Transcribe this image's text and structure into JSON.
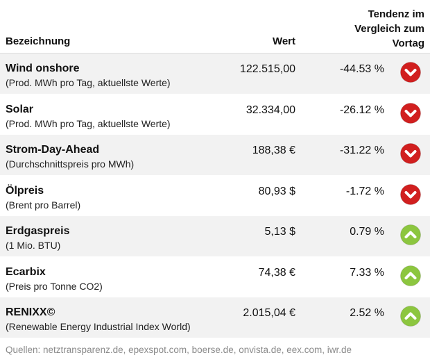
{
  "header": {
    "name_label": "Bezeichnung",
    "value_label": "Wert",
    "trend_line1": "Tendenz im",
    "trend_line2": "Vergleich zum",
    "trend_line3": "Vortag"
  },
  "rows": [
    {
      "title": "Wind onshore",
      "subtitle": "(Prod. MWh pro Tag, aktuellste Werte)",
      "value": "122.515,00",
      "change": "-44.53 %",
      "trend": "down"
    },
    {
      "title": "Solar",
      "subtitle": "(Prod. MWh pro Tag, aktuellste Werte)",
      "value": "32.334,00",
      "change": "-26.12 %",
      "trend": "down"
    },
    {
      "title": "Strom-Day-Ahead",
      "subtitle": "(Durchschnittspreis pro MWh)",
      "value": "188,38 €",
      "change": "-31.22 %",
      "trend": "down"
    },
    {
      "title": "Ölpreis",
      "subtitle": "(Brent pro Barrel)",
      "value": "80,93 $",
      "change": "-1.72 %",
      "trend": "down"
    },
    {
      "title": "Erdgaspreis",
      "subtitle": "(1 Mio. BTU)",
      "value": "5,13 $",
      "change": "0.79 %",
      "trend": "up"
    },
    {
      "title": "Ecarbix",
      "subtitle": "(Preis pro Tonne CO2)",
      "value": "74,38 €",
      "change": "7.33 %",
      "trend": "up"
    },
    {
      "title": "RENIXX©",
      "subtitle": "(Renewable Energy Industrial Index World)",
      "value": "2.015,04 €",
      "change": "2.52 %",
      "trend": "up"
    }
  ],
  "footer": {
    "sources": "Quellen: netztransparenz.de, epexspot.com, boerse.de, onvista.de, eex.com, iwr.de"
  },
  "colors": {
    "down": "#d11f1f",
    "up": "#8cc63f",
    "stripe": "#f2f2f2"
  },
  "icons": {
    "down": "chevron-down-circle-icon",
    "up": "chevron-up-circle-icon"
  }
}
